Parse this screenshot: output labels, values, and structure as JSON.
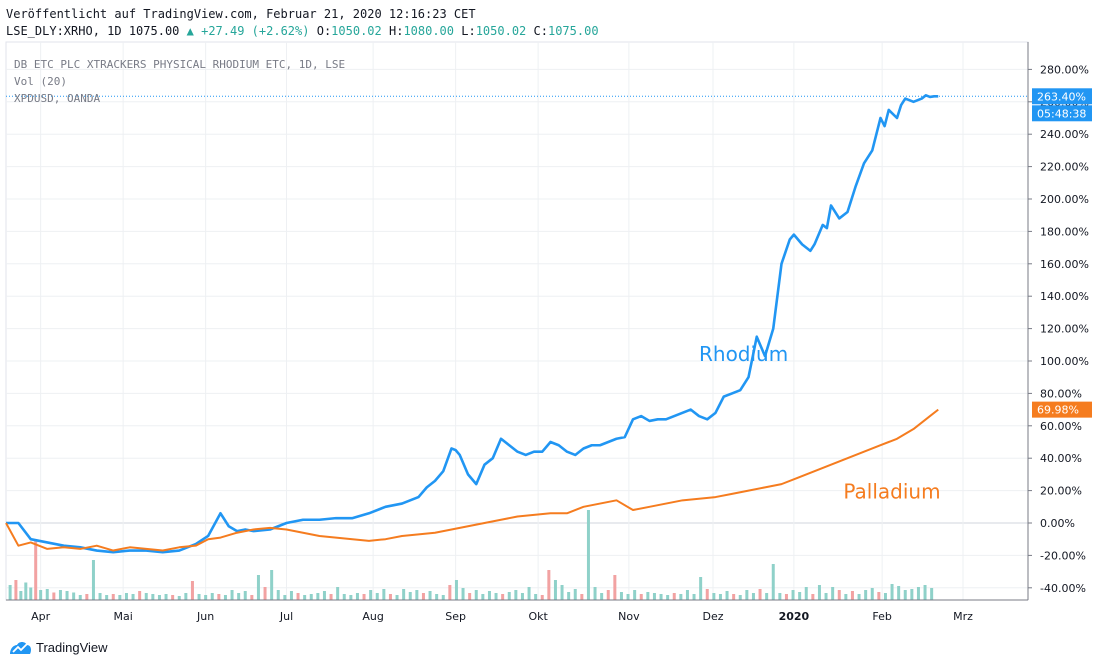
{
  "header": {
    "published": "Veröffentlicht auf TradingView.com, Februar 21, 2020 12:16:23 CET",
    "symbol": "LSE_DLY:XRHO, 1D",
    "last": "1075.00",
    "change": "+27.49 (+2.62%)",
    "o_label": "O:",
    "o": "1050.02",
    "h_label": "H:",
    "h": "1080.00",
    "l_label": "L:",
    "l": "1050.02",
    "c_label": "C:",
    "c": "1075.00"
  },
  "legend": {
    "main_series": "DB ETC PLC XTRACKERS PHYSICAL RHODIUM ETC, 1D, LSE",
    "volume": "Vol (20)",
    "compare": "XPDUSD, OANDA"
  },
  "brand": {
    "name": "TradingView"
  },
  "colors": {
    "rhodium": "#2196f3",
    "palladium": "#f57c1f",
    "vol_up": "#8fd1c9",
    "vol_down": "#f2a2a2",
    "grid": "#eef0f3"
  },
  "chart_data": {
    "type": "line",
    "title": "DB ETC PLC XTRACKERS PHYSICAL RHODIUM ETC, 1D, LSE",
    "xlabel": "",
    "ylabel": "",
    "ylim": [
      -45,
      290
    ],
    "y_unit": "%",
    "y_ticks": [
      280,
      260,
      240,
      220,
      200,
      180,
      160,
      140,
      120,
      100,
      80,
      60,
      40,
      20,
      0,
      -20,
      -40
    ],
    "x_range": [
      0,
      12.2
    ],
    "x_ticks": [
      {
        "x": 0.42,
        "label": "Apr"
      },
      {
        "x": 1.42,
        "label": "Mai"
      },
      {
        "x": 2.42,
        "label": "Jun"
      },
      {
        "x": 3.4,
        "label": "Jul"
      },
      {
        "x": 4.45,
        "label": "Aug"
      },
      {
        "x": 5.45,
        "label": "Sep"
      },
      {
        "x": 6.45,
        "label": "Okt"
      },
      {
        "x": 7.55,
        "label": "Nov"
      },
      {
        "x": 8.57,
        "label": "Dez"
      },
      {
        "x": 9.55,
        "label": "2020"
      },
      {
        "x": 10.62,
        "label": "Feb"
      },
      {
        "x": 11.6,
        "label": "Mrz"
      }
    ],
    "annotations": [
      {
        "text": "Rhodium",
        "x": 8.4,
        "y": 100,
        "series": "rhodium"
      },
      {
        "text": "Palladium",
        "x": 10.15,
        "y": 15,
        "series": "palladium"
      }
    ],
    "last_values": [
      {
        "series": "rhodium",
        "label": "263.40%",
        "y": 263.4,
        "countdown": "05:48:38"
      },
      {
        "series": "palladium",
        "label": "69.98%",
        "y": 69.98
      }
    ],
    "series": [
      {
        "name": "XRHO (Rhodium)",
        "key": "rhodium",
        "x": [
          0,
          0.15,
          0.3,
          0.5,
          0.7,
          0.9,
          1.1,
          1.3,
          1.5,
          1.7,
          1.9,
          2.1,
          2.3,
          2.45,
          2.6,
          2.7,
          2.8,
          2.9,
          3.0,
          3.2,
          3.4,
          3.6,
          3.8,
          4.0,
          4.2,
          4.4,
          4.6,
          4.8,
          5.0,
          5.1,
          5.2,
          5.3,
          5.4,
          5.45,
          5.5,
          5.6,
          5.7,
          5.8,
          5.9,
          6.0,
          6.1,
          6.2,
          6.3,
          6.4,
          6.5,
          6.6,
          6.7,
          6.8,
          6.9,
          7.0,
          7.1,
          7.2,
          7.3,
          7.4,
          7.5,
          7.6,
          7.7,
          7.8,
          7.9,
          8.0,
          8.1,
          8.2,
          8.3,
          8.4,
          8.5,
          8.6,
          8.7,
          8.8,
          8.9,
          9.0,
          9.1,
          9.2,
          9.3,
          9.4,
          9.5,
          9.55,
          9.65,
          9.75,
          9.8,
          9.85,
          9.9,
          9.95,
          10.0,
          10.1,
          10.2,
          10.3,
          10.4,
          10.5,
          10.55,
          10.6,
          10.65,
          10.7,
          10.8,
          10.85,
          10.9,
          11.0,
          11.1,
          11.15,
          11.2,
          11.25,
          11.3
        ],
        "values": [
          0,
          0,
          -10,
          -12,
          -14,
          -15,
          -17,
          -18,
          -17,
          -17,
          -18,
          -17,
          -13,
          -8,
          6,
          -2,
          -5,
          -4,
          -5,
          -4,
          0,
          2,
          2,
          3,
          3,
          6,
          10,
          12,
          16,
          22,
          26,
          32,
          46,
          45,
          42,
          30,
          24,
          36,
          40,
          52,
          48,
          44,
          42,
          44,
          44,
          50,
          48,
          44,
          42,
          46,
          48,
          48,
          50,
          52,
          53,
          64,
          66,
          63,
          64,
          64,
          66,
          68,
          70,
          66,
          64,
          68,
          78,
          80,
          82,
          90,
          115,
          103,
          120,
          160,
          175,
          178,
          172,
          168,
          172,
          178,
          184,
          182,
          196,
          188,
          192,
          208,
          222,
          230,
          240,
          250,
          245,
          255,
          250,
          258,
          262,
          260,
          262,
          264,
          263,
          263.4,
          263.4
        ]
      },
      {
        "name": "XPDUSD (Palladium)",
        "key": "palladium",
        "x": [
          0,
          0.15,
          0.3,
          0.5,
          0.7,
          0.9,
          1.1,
          1.3,
          1.5,
          1.7,
          1.9,
          2.1,
          2.3,
          2.45,
          2.6,
          2.8,
          3.0,
          3.2,
          3.4,
          3.6,
          3.8,
          4.0,
          4.2,
          4.4,
          4.6,
          4.8,
          5.0,
          5.2,
          5.4,
          5.6,
          5.8,
          6.0,
          6.2,
          6.4,
          6.6,
          6.8,
          7.0,
          7.2,
          7.4,
          7.6,
          7.8,
          8.0,
          8.2,
          8.4,
          8.6,
          8.8,
          9.0,
          9.2,
          9.4,
          9.6,
          9.8,
          10.0,
          10.2,
          10.4,
          10.6,
          10.8,
          11.0,
          11.1,
          11.2,
          11.3
        ],
        "values": [
          0,
          -14,
          -12,
          -16,
          -15,
          -16,
          -14,
          -17,
          -15,
          -16,
          -17,
          -15,
          -14,
          -10,
          -9,
          -6,
          -4,
          -3,
          -4,
          -6,
          -8,
          -9,
          -10,
          -11,
          -10,
          -8,
          -7,
          -6,
          -4,
          -2,
          0,
          2,
          4,
          5,
          6,
          6,
          10,
          12,
          14,
          8,
          10,
          12,
          14,
          15,
          16,
          18,
          20,
          22,
          24,
          28,
          32,
          36,
          40,
          44,
          48,
          52,
          58,
          62,
          66,
          70
        ]
      }
    ],
    "volume": {
      "x": [
        0.05,
        0.12,
        0.18,
        0.24,
        0.3,
        0.36,
        0.42,
        0.5,
        0.58,
        0.66,
        0.74,
        0.82,
        0.9,
        0.98,
        1.06,
        1.14,
        1.22,
        1.3,
        1.38,
        1.46,
        1.54,
        1.62,
        1.7,
        1.78,
        1.86,
        1.94,
        2.02,
        2.1,
        2.18,
        2.26,
        2.34,
        2.42,
        2.5,
        2.58,
        2.66,
        2.74,
        2.82,
        2.9,
        2.98,
        3.06,
        3.14,
        3.22,
        3.3,
        3.38,
        3.46,
        3.54,
        3.62,
        3.7,
        3.78,
        3.86,
        3.94,
        4.02,
        4.1,
        4.18,
        4.26,
        4.34,
        4.42,
        4.5,
        4.58,
        4.66,
        4.74,
        4.82,
        4.9,
        4.98,
        5.06,
        5.14,
        5.22,
        5.3,
        5.38,
        5.46,
        5.54,
        5.62,
        5.7,
        5.78,
        5.86,
        5.94,
        6.02,
        6.1,
        6.18,
        6.26,
        6.34,
        6.42,
        6.5,
        6.58,
        6.66,
        6.74,
        6.82,
        6.9,
        6.98,
        7.06,
        7.14,
        7.22,
        7.3,
        7.38,
        7.46,
        7.54,
        7.62,
        7.7,
        7.78,
        7.86,
        7.94,
        8.02,
        8.1,
        8.18,
        8.26,
        8.34,
        8.42,
        8.5,
        8.58,
        8.66,
        8.74,
        8.82,
        8.9,
        8.98,
        9.06,
        9.14,
        9.22,
        9.3,
        9.38,
        9.46,
        9.54,
        9.62,
        9.7,
        9.78,
        9.86,
        9.94,
        10.02,
        10.1,
        10.18,
        10.26,
        10.34,
        10.42,
        10.5,
        10.58,
        10.66,
        10.74,
        10.82,
        10.9,
        10.98,
        11.06,
        11.14,
        11.22
      ],
      "values": [
        30,
        40,
        18,
        35,
        25,
        120,
        20,
        22,
        15,
        20,
        18,
        15,
        10,
        12,
        80,
        14,
        10,
        12,
        10,
        14,
        12,
        18,
        14,
        12,
        10,
        12,
        10,
        8,
        14,
        38,
        12,
        10,
        14,
        12,
        10,
        20,
        14,
        18,
        10,
        50,
        26,
        60,
        20,
        10,
        18,
        14,
        10,
        12,
        14,
        18,
        12,
        26,
        12,
        10,
        14,
        12,
        20,
        14,
        22,
        12,
        10,
        22,
        16,
        20,
        14,
        18,
        12,
        10,
        30,
        40,
        24,
        14,
        20,
        12,
        18,
        14,
        12,
        16,
        20,
        14,
        26,
        12,
        10,
        60,
        40,
        30,
        16,
        22,
        12,
        180,
        26,
        14,
        20,
        50,
        16,
        12,
        20,
        12,
        16,
        14,
        12,
        10,
        14,
        12,
        20,
        12,
        46,
        22,
        14,
        12,
        18,
        12,
        10,
        20,
        14,
        22,
        14,
        72,
        14,
        12,
        20,
        16,
        26,
        12,
        30,
        14,
        26,
        20,
        12,
        18,
        12,
        20,
        24,
        16,
        14,
        32,
        28,
        20,
        22,
        26,
        30,
        24
      ],
      "down": [
        false,
        true,
        false,
        false,
        false,
        true,
        false,
        false,
        true,
        false,
        false,
        false,
        false,
        true,
        false,
        false,
        false,
        true,
        false,
        false,
        false,
        true,
        false,
        false,
        false,
        false,
        true,
        false,
        false,
        true,
        false,
        false,
        false,
        true,
        false,
        false,
        false,
        false,
        true,
        false,
        true,
        false,
        false,
        false,
        false,
        true,
        false,
        false,
        false,
        false,
        true,
        false,
        false,
        false,
        false,
        true,
        false,
        false,
        false,
        true,
        false,
        false,
        false,
        false,
        true,
        false,
        false,
        false,
        true,
        false,
        false,
        true,
        false,
        false,
        false,
        false,
        true,
        false,
        false,
        false,
        false,
        false,
        true,
        true,
        false,
        false,
        false,
        false,
        true,
        false,
        false,
        false,
        true,
        true,
        false,
        false,
        false,
        true,
        false,
        false,
        false,
        false,
        true,
        false,
        false,
        false,
        false,
        true,
        false,
        false,
        false,
        true,
        false,
        false,
        false,
        true,
        false,
        false,
        false,
        true,
        false,
        false,
        false,
        true,
        false,
        false,
        false,
        true,
        false,
        true,
        false,
        false,
        false,
        true,
        false,
        false,
        false,
        false,
        false,
        false,
        false,
        false
      ]
    }
  }
}
